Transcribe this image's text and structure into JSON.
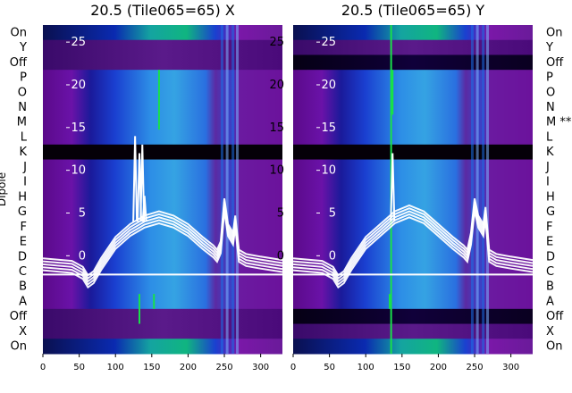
{
  "chart_data": [
    {
      "type": "heatmap",
      "title": "20.5 (Tile065=65) X",
      "ylabel": "Dipole",
      "rows": [
        "On",
        "Y",
        "Off",
        "P",
        "O",
        "N",
        "M",
        "L",
        "K",
        "J",
        "I",
        "H",
        "G",
        "F",
        "E",
        "D",
        "C",
        "B",
        "A",
        "Off",
        "X",
        "On"
      ],
      "row_markers": {
        "M": "",
        "K": ""
      },
      "xlim": [
        0,
        330
      ],
      "xticks": [
        0,
        50,
        100,
        150,
        200,
        250,
        300
      ],
      "trace_ylim": [
        -3,
        27
      ],
      "trace_yticks": [
        0,
        5,
        10,
        15,
        20,
        25
      ],
      "flagged_rows": [
        "K"
      ],
      "trace_x": [
        0,
        40,
        55,
        62,
        70,
        80,
        100,
        120,
        140,
        160,
        180,
        200,
        220,
        235,
        240,
        245,
        250,
        255,
        262,
        265,
        270,
        280,
        300,
        330
      ],
      "trace_y": [
        -1,
        -1.3,
        -2,
        -3,
        -2.5,
        -1,
        1.5,
        3,
        4,
        4.5,
        4,
        3,
        1.5,
        0.5,
        0,
        1,
        6,
        3,
        2,
        4,
        0,
        -0.5,
        -0.8,
        -1.2
      ],
      "spikes": [
        {
          "x": 127,
          "y": 14
        },
        {
          "x": 133,
          "y": 12
        },
        {
          "x": 137,
          "y": 13
        },
        {
          "x": 140,
          "y": 7
        }
      ],
      "highlight_lines": [
        {
          "x": 160,
          "from_row": "P",
          "to_row": "M"
        },
        {
          "x": 153,
          "from_row": "A",
          "to_row": "A"
        },
        {
          "x": 133,
          "from_row": "A",
          "to_row": "Off"
        }
      ]
    },
    {
      "type": "heatmap",
      "title": "20.5 (Tile065=65) Y",
      "rows": [
        "On",
        "Y",
        "Off",
        "P",
        "O",
        "N",
        "M",
        "L",
        "K",
        "J",
        "I",
        "H",
        "G",
        "F",
        "E",
        "D",
        "C",
        "B",
        "A",
        "Off",
        "X",
        "On"
      ],
      "row_markers": {
        "M": "**"
      },
      "xlim": [
        0,
        330
      ],
      "xticks": [
        0,
        50,
        100,
        150,
        200,
        250,
        300
      ],
      "trace_ylim": [
        -3,
        27
      ],
      "trace_yticks": [
        0,
        5,
        10,
        15,
        20,
        25
      ],
      "flagged_rows": [
        "K"
      ],
      "trace_x": [
        0,
        40,
        55,
        62,
        70,
        80,
        100,
        120,
        140,
        160,
        180,
        200,
        220,
        235,
        240,
        245,
        250,
        255,
        262,
        265,
        270,
        280,
        300,
        330
      ],
      "trace_y": [
        -1,
        -1.3,
        -2,
        -3,
        -2.5,
        -1,
        1.5,
        3,
        4.5,
        5.2,
        4.5,
        3,
        1.5,
        0.5,
        0,
        2,
        6,
        4,
        3,
        5,
        0,
        -0.5,
        -0.8,
        -1.2
      ],
      "spikes": [
        {
          "x": 137,
          "y": 12
        }
      ],
      "highlight_lines": [
        {
          "x": 137,
          "from_row": "P",
          "to_row": "N"
        },
        {
          "x": 133,
          "from_row": "A",
          "to_row": "A"
        },
        {
          "x": 135,
          "from_row": "On",
          "to_row": "On"
        }
      ]
    }
  ]
}
